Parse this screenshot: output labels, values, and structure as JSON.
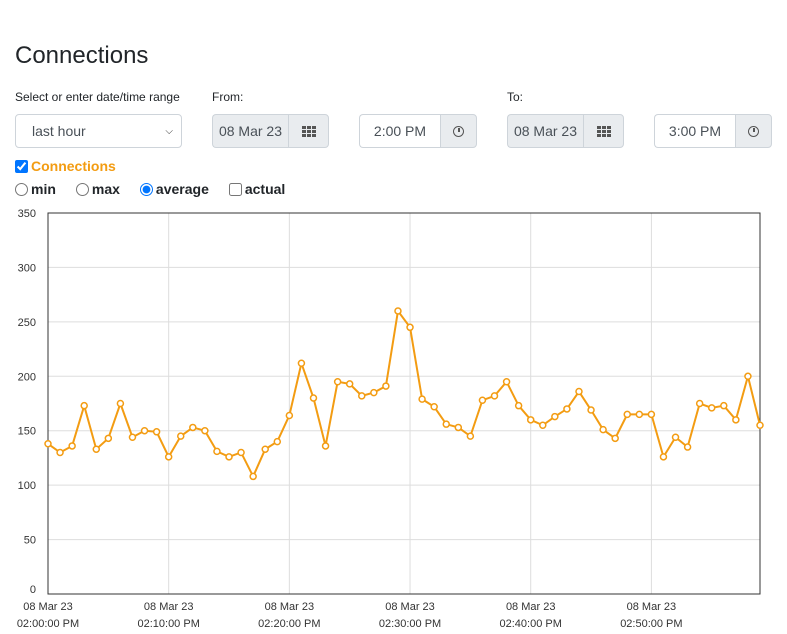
{
  "page": {
    "title": "Connections",
    "range_label": "Select or enter date/time range",
    "range_value": "last hour",
    "from_label": "From:",
    "from_date": "08 Mar 23",
    "from_time": "2:00 PM",
    "to_label": "To:",
    "to_date": "08 Mar 23",
    "to_time": "3:00 PM",
    "series_checkbox_label": "Connections",
    "radio_options": [
      "min",
      "max",
      "average",
      "actual"
    ],
    "radio_selected": "average",
    "actual_checked": false
  },
  "colors": {
    "series": "#f39c12",
    "grid": "#dddddd",
    "axis": "#333333"
  },
  "chart_data": {
    "type": "line",
    "ylim": [
      0,
      350
    ],
    "yticks": [
      0,
      50,
      100,
      150,
      200,
      250,
      300,
      350
    ],
    "xlim_minutes": [
      0,
      59
    ],
    "xticks": [
      {
        "minute": 0,
        "date": "08 Mar 23",
        "time": "02:00:00 PM"
      },
      {
        "minute": 10,
        "date": "08 Mar 23",
        "time": "02:10:00 PM"
      },
      {
        "minute": 20,
        "date": "08 Mar 23",
        "time": "02:20:00 PM"
      },
      {
        "minute": 30,
        "date": "08 Mar 23",
        "time": "02:30:00 PM"
      },
      {
        "minute": 40,
        "date": "08 Mar 23",
        "time": "02:40:00 PM"
      },
      {
        "minute": 50,
        "date": "08 Mar 23",
        "time": "02:50:00 PM"
      }
    ],
    "series": [
      {
        "values": [
          138,
          130,
          136,
          173,
          133,
          143,
          175,
          144,
          150,
          149,
          126,
          145,
          153,
          150,
          131,
          126,
          130,
          108,
          133,
          140,
          164,
          212,
          180,
          136,
          195,
          193,
          182,
          185,
          191,
          260,
          245,
          179,
          172,
          156,
          153,
          145,
          178,
          182,
          195,
          173,
          160,
          155,
          163,
          170,
          186,
          169,
          151,
          143,
          165,
          165,
          165,
          126,
          144,
          135,
          175,
          171,
          173,
          160,
          200,
          155
        ]
      }
    ]
  }
}
